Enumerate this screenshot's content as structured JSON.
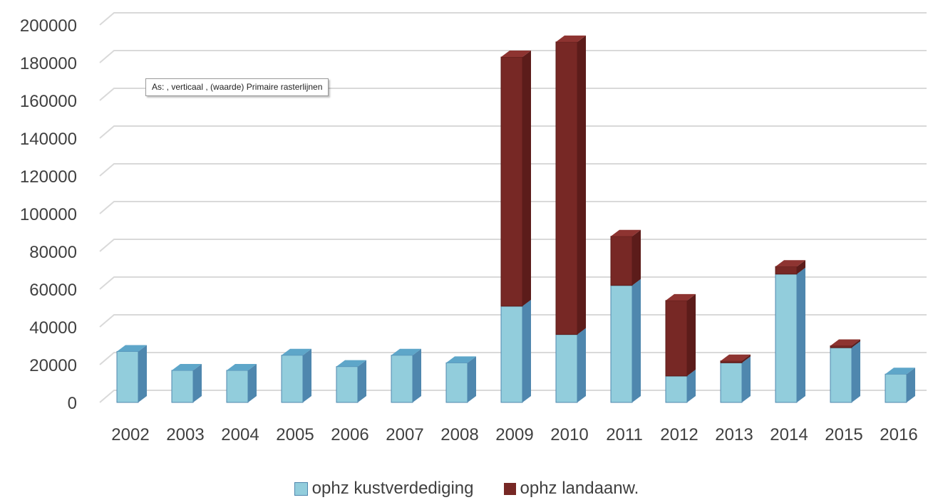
{
  "tooltip": "As: , verticaal , (waarde)  Primaire rasterlijnen",
  "colors": {
    "kust_front": "#92CDDC",
    "kust_side": "#4F87AE",
    "kust_top": "#5EA6C9",
    "land_front": "#772825",
    "land_side": "#5C1C1A",
    "land_top": "#8E3431",
    "gridline": "#D9D9D9",
    "axis_text": "#404040"
  },
  "chart_data": {
    "type": "bar",
    "stacked": true,
    "three_d": true,
    "categories": [
      "2002",
      "2003",
      "2004",
      "2005",
      "2006",
      "2007",
      "2008",
      "2009",
      "2010",
      "2011",
      "2012",
      "2013",
      "2014",
      "2015",
      "2016"
    ],
    "series": [
      {
        "name": "ophz kustverdediging",
        "values": [
          27000,
          17000,
          17000,
          25000,
          19000,
          25000,
          21000,
          51000,
          36000,
          62000,
          14000,
          21000,
          68000,
          29000,
          15000
        ]
      },
      {
        "name": "ophz landaanw.",
        "values": [
          0,
          0,
          0,
          0,
          0,
          0,
          0,
          132000,
          155000,
          26000,
          40000,
          1000,
          4000,
          1000,
          0
        ]
      }
    ],
    "ylim": [
      0,
      200000
    ],
    "yticks": [
      "0",
      "20000",
      "40000",
      "60000",
      "80000",
      "100000",
      "120000",
      "140000",
      "160000",
      "180000",
      "200000"
    ],
    "grid": true,
    "legend_position": "bottom"
  }
}
